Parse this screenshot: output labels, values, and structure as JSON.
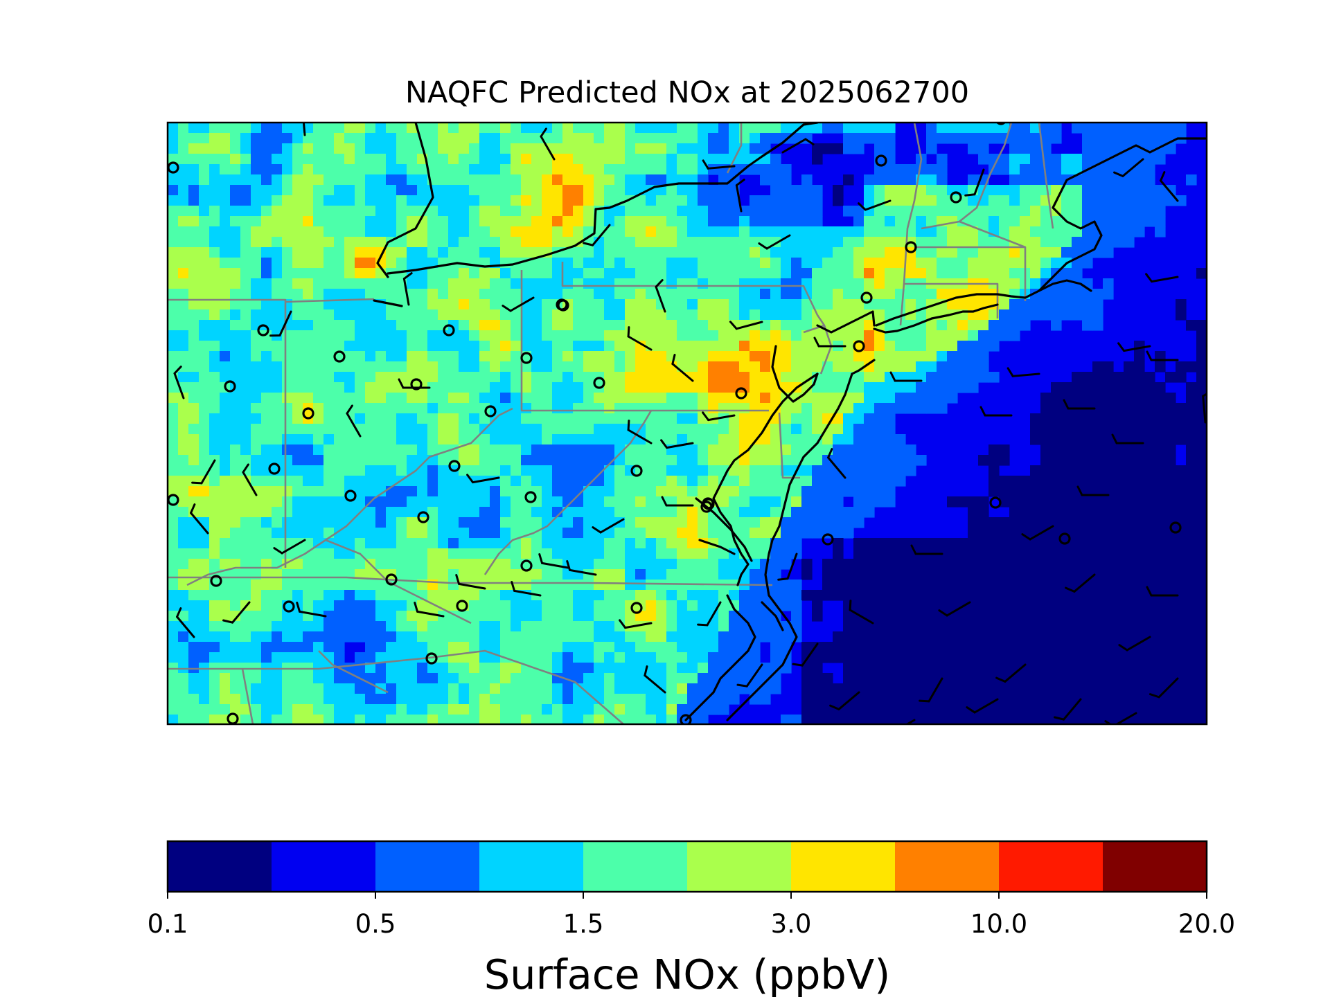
{
  "title": "NAQFC Predicted NOx at 2025062700",
  "colorbar": {
    "label": "Surface NOx (ppbV)",
    "tick_labels": [
      "0.1",
      "0.5",
      "1.5",
      "3.0",
      "10.0",
      "20.0"
    ],
    "colors": [
      "#000080",
      "#0000f1",
      "#0060ff",
      "#00d4ff",
      "#4cffaa",
      "#aaff4c",
      "#ffe500",
      "#ff8000",
      "#ff1a00",
      "#800000"
    ]
  },
  "map": {
    "variable": "Surface NOx",
    "units": "ppbV",
    "region": "US Northeast / Mid-Atlantic",
    "features": [
      "coastline",
      "state boundaries",
      "wind barbs",
      "calm wind circles"
    ]
  }
}
